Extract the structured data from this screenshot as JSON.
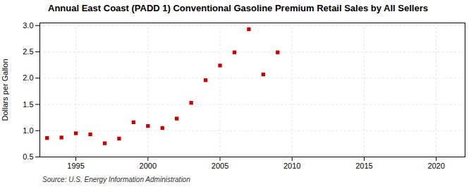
{
  "chart_data": {
    "type": "scatter",
    "title": "Annual East Coast (PADD 1) Conventional Gasoline Premium Retail Sales by All Sellers",
    "ylabel": "Dollars per Gallon",
    "source": "Source: U.S. Energy Information Administration",
    "x": [
      1993,
      1994,
      1995,
      1996,
      1997,
      1998,
      1999,
      2000,
      2001,
      2002,
      2003,
      2004,
      2005,
      2006,
      2007,
      2008,
      2009
    ],
    "values": [
      0.86,
      0.87,
      0.95,
      0.93,
      0.76,
      0.85,
      1.16,
      1.09,
      1.05,
      1.23,
      1.53,
      1.96,
      2.24,
      2.49,
      2.93,
      2.07,
      2.49
    ],
    "color": "#cc0000",
    "marker": "square",
    "xlim": [
      1992.5,
      2022
    ],
    "xticks": [
      1995,
      2000,
      2005,
      2010,
      2015,
      2020
    ],
    "ylim": [
      0.5,
      3.05
    ],
    "yticks": [
      0.5,
      {
        "value": 1.0,
        "label": "1.0"
      },
      1.5,
      {
        "value": 2.0,
        "label": "2.0"
      },
      2.5,
      {
        "value": 3.0,
        "label": "3.0"
      }
    ],
    "grid": true
  }
}
